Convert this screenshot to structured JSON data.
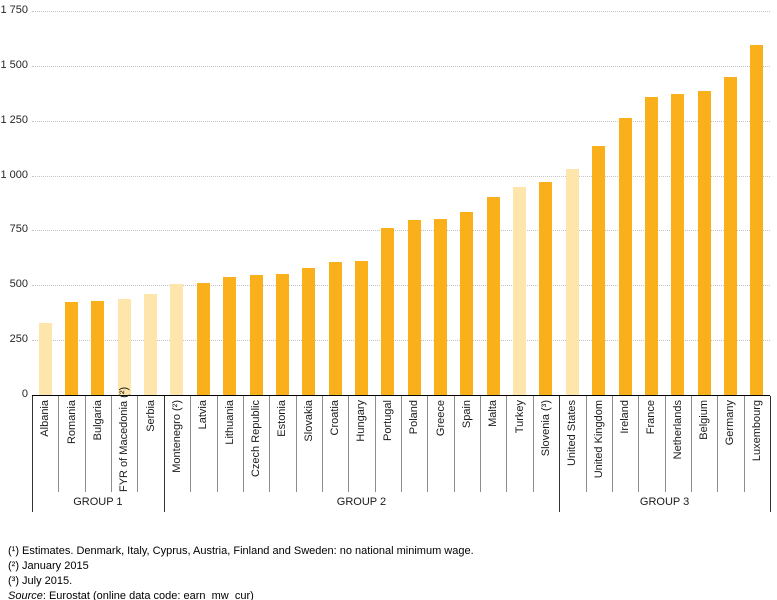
{
  "chart_data": {
    "type": "bar",
    "title": "",
    "ylabel": "",
    "xlabel": "",
    "ylim": [
      0,
      1750
    ],
    "grid": "horizontal dotted",
    "legend": "none",
    "yticks": [
      {
        "v": 0,
        "label": "0"
      },
      {
        "v": 250,
        "label": "250"
      },
      {
        "v": 500,
        "label": "500"
      },
      {
        "v": 750,
        "label": "750"
      },
      {
        "v": 1000,
        "label": "1 000"
      },
      {
        "v": 1250,
        "label": "1 250"
      },
      {
        "v": 1500,
        "label": "1 500"
      },
      {
        "v": 1750,
        "label": "1 750"
      }
    ],
    "bars": [
      {
        "name": "Albania",
        "value": 330,
        "bar_type": "pale"
      },
      {
        "name": "Romania",
        "value": 425,
        "bar_type": "solid"
      },
      {
        "name": "Bulgaria",
        "value": 428,
        "bar_type": "solid"
      },
      {
        "name": "FYR of Macedonia (²)",
        "value": 437,
        "bar_type": "pale"
      },
      {
        "name": "Serbia",
        "value": 460,
        "bar_type": "pale"
      },
      {
        "name": "Montenegro (²)",
        "value": 505,
        "bar_type": "pale"
      },
      {
        "name": "Latvia",
        "value": 512,
        "bar_type": "solid"
      },
      {
        "name": "Lithuania",
        "value": 538,
        "bar_type": "solid"
      },
      {
        "name": "Czech Republic",
        "value": 547,
        "bar_type": "solid"
      },
      {
        "name": "Estonia",
        "value": 552,
        "bar_type": "solid"
      },
      {
        "name": "Slovakia",
        "value": 579,
        "bar_type": "solid"
      },
      {
        "name": "Croatia",
        "value": 607,
        "bar_type": "solid"
      },
      {
        "name": "Hungary",
        "value": 612,
        "bar_type": "solid"
      },
      {
        "name": "Portugal",
        "value": 760,
        "bar_type": "solid"
      },
      {
        "name": "Poland",
        "value": 796,
        "bar_type": "solid"
      },
      {
        "name": "Greece",
        "value": 801,
        "bar_type": "solid"
      },
      {
        "name": "Spain",
        "value": 832,
        "bar_type": "solid"
      },
      {
        "name": "Malta",
        "value": 903,
        "bar_type": "solid"
      },
      {
        "name": "Turkey",
        "value": 950,
        "bar_type": "pale"
      },
      {
        "name": "Slovenia (³)",
        "value": 972,
        "bar_type": "solid"
      },
      {
        "name": "United States",
        "value": 1031,
        "bar_type": "pale"
      },
      {
        "name": "United Kingdom",
        "value": 1137,
        "bar_type": "solid"
      },
      {
        "name": "Ireland",
        "value": 1262,
        "bar_type": "solid"
      },
      {
        "name": "France",
        "value": 1357,
        "bar_type": "solid"
      },
      {
        "name": "Netherlands",
        "value": 1374,
        "bar_type": "solid"
      },
      {
        "name": "Belgium",
        "value": 1384,
        "bar_type": "solid"
      },
      {
        "name": "Germany",
        "value": 1450,
        "bar_type": "solid"
      },
      {
        "name": "Luxembourg",
        "value": 1593,
        "bar_type": "solid"
      }
    ],
    "groups": [
      {
        "label": "GROUP 1",
        "from": 0,
        "to": 4
      },
      {
        "label": "GROUP 2",
        "from": 5,
        "to": 19
      },
      {
        "label": "GROUP 3",
        "from": 20,
        "to": 27
      }
    ],
    "colors": {
      "solid_bar": "#FAB01B",
      "pale_bar": "#FDE5AC",
      "gridline": "#c4c4c4",
      "axis": "#000000"
    }
  },
  "footnotes": {
    "line1": "(¹) Estimates. Denmark, Italy, Cyprus, Austria, Finland and Sweden: no national minimum wage.",
    "line2": "(²) January 2015",
    "line3": "(³) July 2015.",
    "source_label": "Source",
    "source_text": ": Eurostat (online data code: earn_mw_cur)"
  }
}
